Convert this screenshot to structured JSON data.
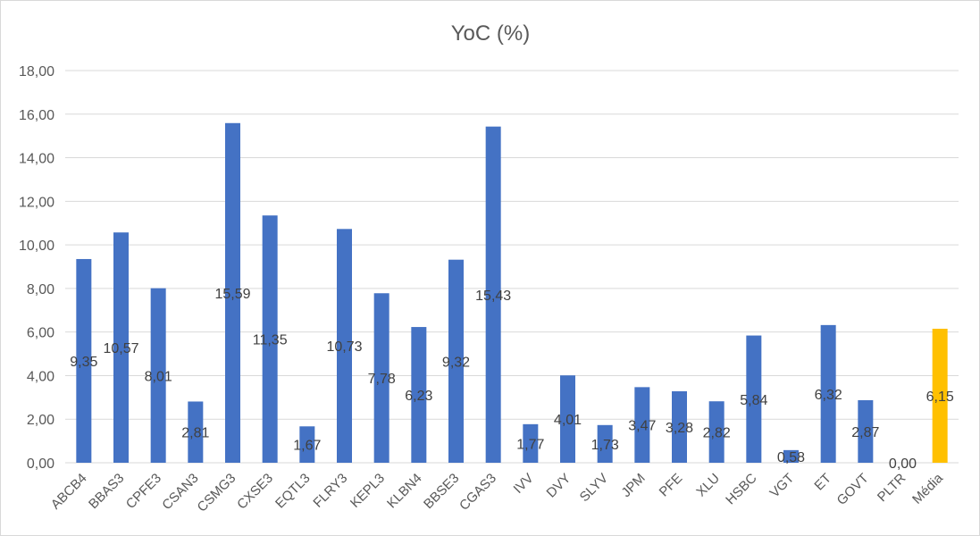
{
  "chart_data": {
    "type": "bar",
    "title": "YoC (%)",
    "xlabel": "",
    "ylabel": "",
    "ylim": [
      0,
      18
    ],
    "ytick_step": 2,
    "ytick_labels": [
      "0,00",
      "2,00",
      "4,00",
      "6,00",
      "8,00",
      "10,00",
      "12,00",
      "14,00",
      "16,00",
      "18,00"
    ],
    "grid": true,
    "legend": "none",
    "categories": [
      "ABCB4",
      "BBAS3",
      "CPFE3",
      "CSAN3",
      "CSMG3",
      "CXSE3",
      "EQTL3",
      "FLRY3",
      "KEPL3",
      "KLBN4",
      "BBSE3",
      "CGAS3",
      "IVV",
      "DVY",
      "SLYV",
      "JPM",
      "PFE",
      "XLU",
      "HSBC",
      "VGT",
      "ET",
      "GOVT",
      "PLTR",
      "Média"
    ],
    "values": [
      9.35,
      10.57,
      8.01,
      2.81,
      15.59,
      11.35,
      1.67,
      10.73,
      7.78,
      6.23,
      9.32,
      15.43,
      1.77,
      4.01,
      1.73,
      3.47,
      3.28,
      2.82,
      5.84,
      0.58,
      6.32,
      2.87,
      0.0,
      6.15
    ],
    "data_labels": [
      "9,35",
      "10,57",
      "8,01",
      "2,81",
      "15,59",
      "11,35",
      "1,67",
      "10,73",
      "7,78",
      "6,23",
      "9,32",
      "15,43",
      "1,77",
      "4,01",
      "1,73",
      "3,47",
      "3,28",
      "2,82",
      "5,84",
      "0,58",
      "6,32",
      "2,87",
      "0,00",
      "6,15"
    ],
    "colors": {
      "bar": "#4472C4",
      "highlight": "#FFC000",
      "grid": "#D9D9D9",
      "text": "#595959"
    },
    "highlight_category": "Média"
  }
}
